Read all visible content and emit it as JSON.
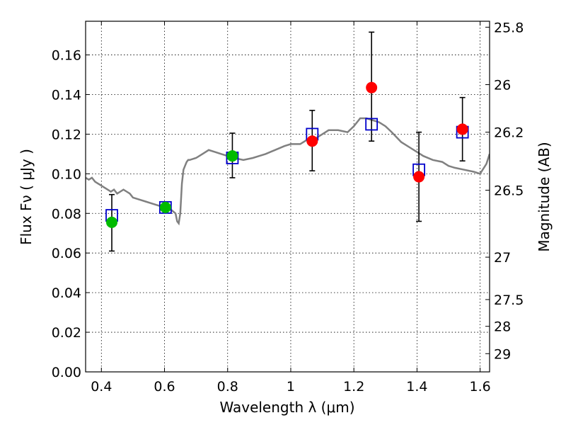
{
  "chart_data": {
    "type": "scatter",
    "xlabel": "Wavelength  λ (μm)",
    "ylabel": "Flux  Fν  ( μJy )",
    "ylabel_right": "Magnitude (AB)",
    "xlim": [
      0.35,
      1.63
    ],
    "ylim": [
      0,
      0.177
    ],
    "grid": true,
    "x_ticks": [
      0.4,
      0.6,
      0.8,
      1.0,
      1.2,
      1.4,
      1.6
    ],
    "x_tick_labels": [
      "0.4",
      "0.6",
      "0.8",
      "1",
      "1.2",
      "1.4",
      "1.6"
    ],
    "y_ticks": [
      0.0,
      0.02,
      0.04,
      0.06,
      0.08,
      0.1,
      0.12,
      0.14,
      0.16
    ],
    "y_tick_labels": [
      "0.00",
      "0.02",
      "0.04",
      "0.06",
      "0.08",
      "0.10",
      "0.12",
      "0.14",
      "0.16"
    ],
    "right_ticks": [
      {
        "label": "25.8",
        "flux": 0.174
      },
      {
        "label": "26",
        "flux": 0.145
      },
      {
        "label": "26.2",
        "flux": 0.121
      },
      {
        "label": "26.5",
        "flux": 0.0917
      },
      {
        "label": "27",
        "flux": 0.0579
      },
      {
        "label": "27.5",
        "flux": 0.0365
      },
      {
        "label": "28",
        "flux": 0.023
      },
      {
        "label": "29",
        "flux": 0.0092
      }
    ],
    "series": [
      {
        "type": "line",
        "color": "#808080",
        "x": [
          0.35,
          0.36,
          0.37,
          0.38,
          0.39,
          0.4,
          0.41,
          0.42,
          0.43,
          0.44,
          0.45,
          0.46,
          0.47,
          0.48,
          0.49,
          0.5,
          0.52,
          0.54,
          0.56,
          0.58,
          0.6,
          0.62,
          0.635,
          0.64,
          0.645,
          0.65,
          0.655,
          0.66,
          0.665,
          0.67,
          0.675,
          0.68,
          0.7,
          0.72,
          0.74,
          0.76,
          0.78,
          0.8,
          0.82,
          0.85,
          0.88,
          0.9,
          0.92,
          0.95,
          0.98,
          1.0,
          1.03,
          1.05,
          1.08,
          1.1,
          1.12,
          1.15,
          1.18,
          1.2,
          1.22,
          1.24,
          1.26,
          1.28,
          1.3,
          1.32,
          1.35,
          1.38,
          1.4,
          1.42,
          1.45,
          1.48,
          1.5,
          1.52,
          1.55,
          1.58,
          1.6,
          1.62,
          1.63
        ],
        "y": [
          0.098,
          0.097,
          0.098,
          0.096,
          0.095,
          0.094,
          0.093,
          0.092,
          0.091,
          0.092,
          0.09,
          0.091,
          0.092,
          0.091,
          0.09,
          0.088,
          0.087,
          0.086,
          0.085,
          0.084,
          0.083,
          0.082,
          0.08,
          0.076,
          0.075,
          0.08,
          0.095,
          0.102,
          0.104,
          0.106,
          0.107,
          0.107,
          0.108,
          0.11,
          0.112,
          0.111,
          0.11,
          0.109,
          0.108,
          0.107,
          0.108,
          0.109,
          0.11,
          0.112,
          0.114,
          0.115,
          0.115,
          0.117,
          0.118,
          0.12,
          0.122,
          0.122,
          0.121,
          0.124,
          0.128,
          0.128,
          0.127,
          0.126,
          0.124,
          0.121,
          0.116,
          0.113,
          0.111,
          0.109,
          0.107,
          0.106,
          0.104,
          0.103,
          0.102,
          0.101,
          0.1,
          0.105,
          0.11
        ]
      },
      {
        "type": "scatter",
        "marker": "square",
        "color": "#0000cc",
        "x": [
          0.433,
          0.603,
          0.815,
          1.068,
          1.256,
          1.406,
          1.544
        ],
        "y": [
          0.079,
          0.083,
          0.108,
          0.12,
          0.125,
          0.102,
          0.121
        ]
      },
      {
        "type": "scatter",
        "marker": "circle",
        "color": "#00bb00",
        "x": [
          0.433,
          0.603,
          0.815
        ],
        "y": [
          0.0755,
          0.083,
          0.109
        ]
      },
      {
        "type": "scatter",
        "marker": "circle",
        "color": "#ff0000",
        "x": [
          1.068,
          1.256,
          1.406,
          1.544
        ],
        "y": [
          0.1165,
          0.1435,
          0.0985,
          0.1225
        ]
      },
      {
        "type": "errorbar",
        "color": "#000000",
        "x": [
          0.433,
          0.815,
          1.068,
          1.256,
          1.406,
          1.544
        ],
        "lo": [
          0.061,
          0.098,
          0.1015,
          0.1165,
          0.076,
          0.1065
        ],
        "hi": [
          0.0895,
          0.1205,
          0.132,
          0.1715,
          0.121,
          0.1385
        ]
      }
    ]
  }
}
